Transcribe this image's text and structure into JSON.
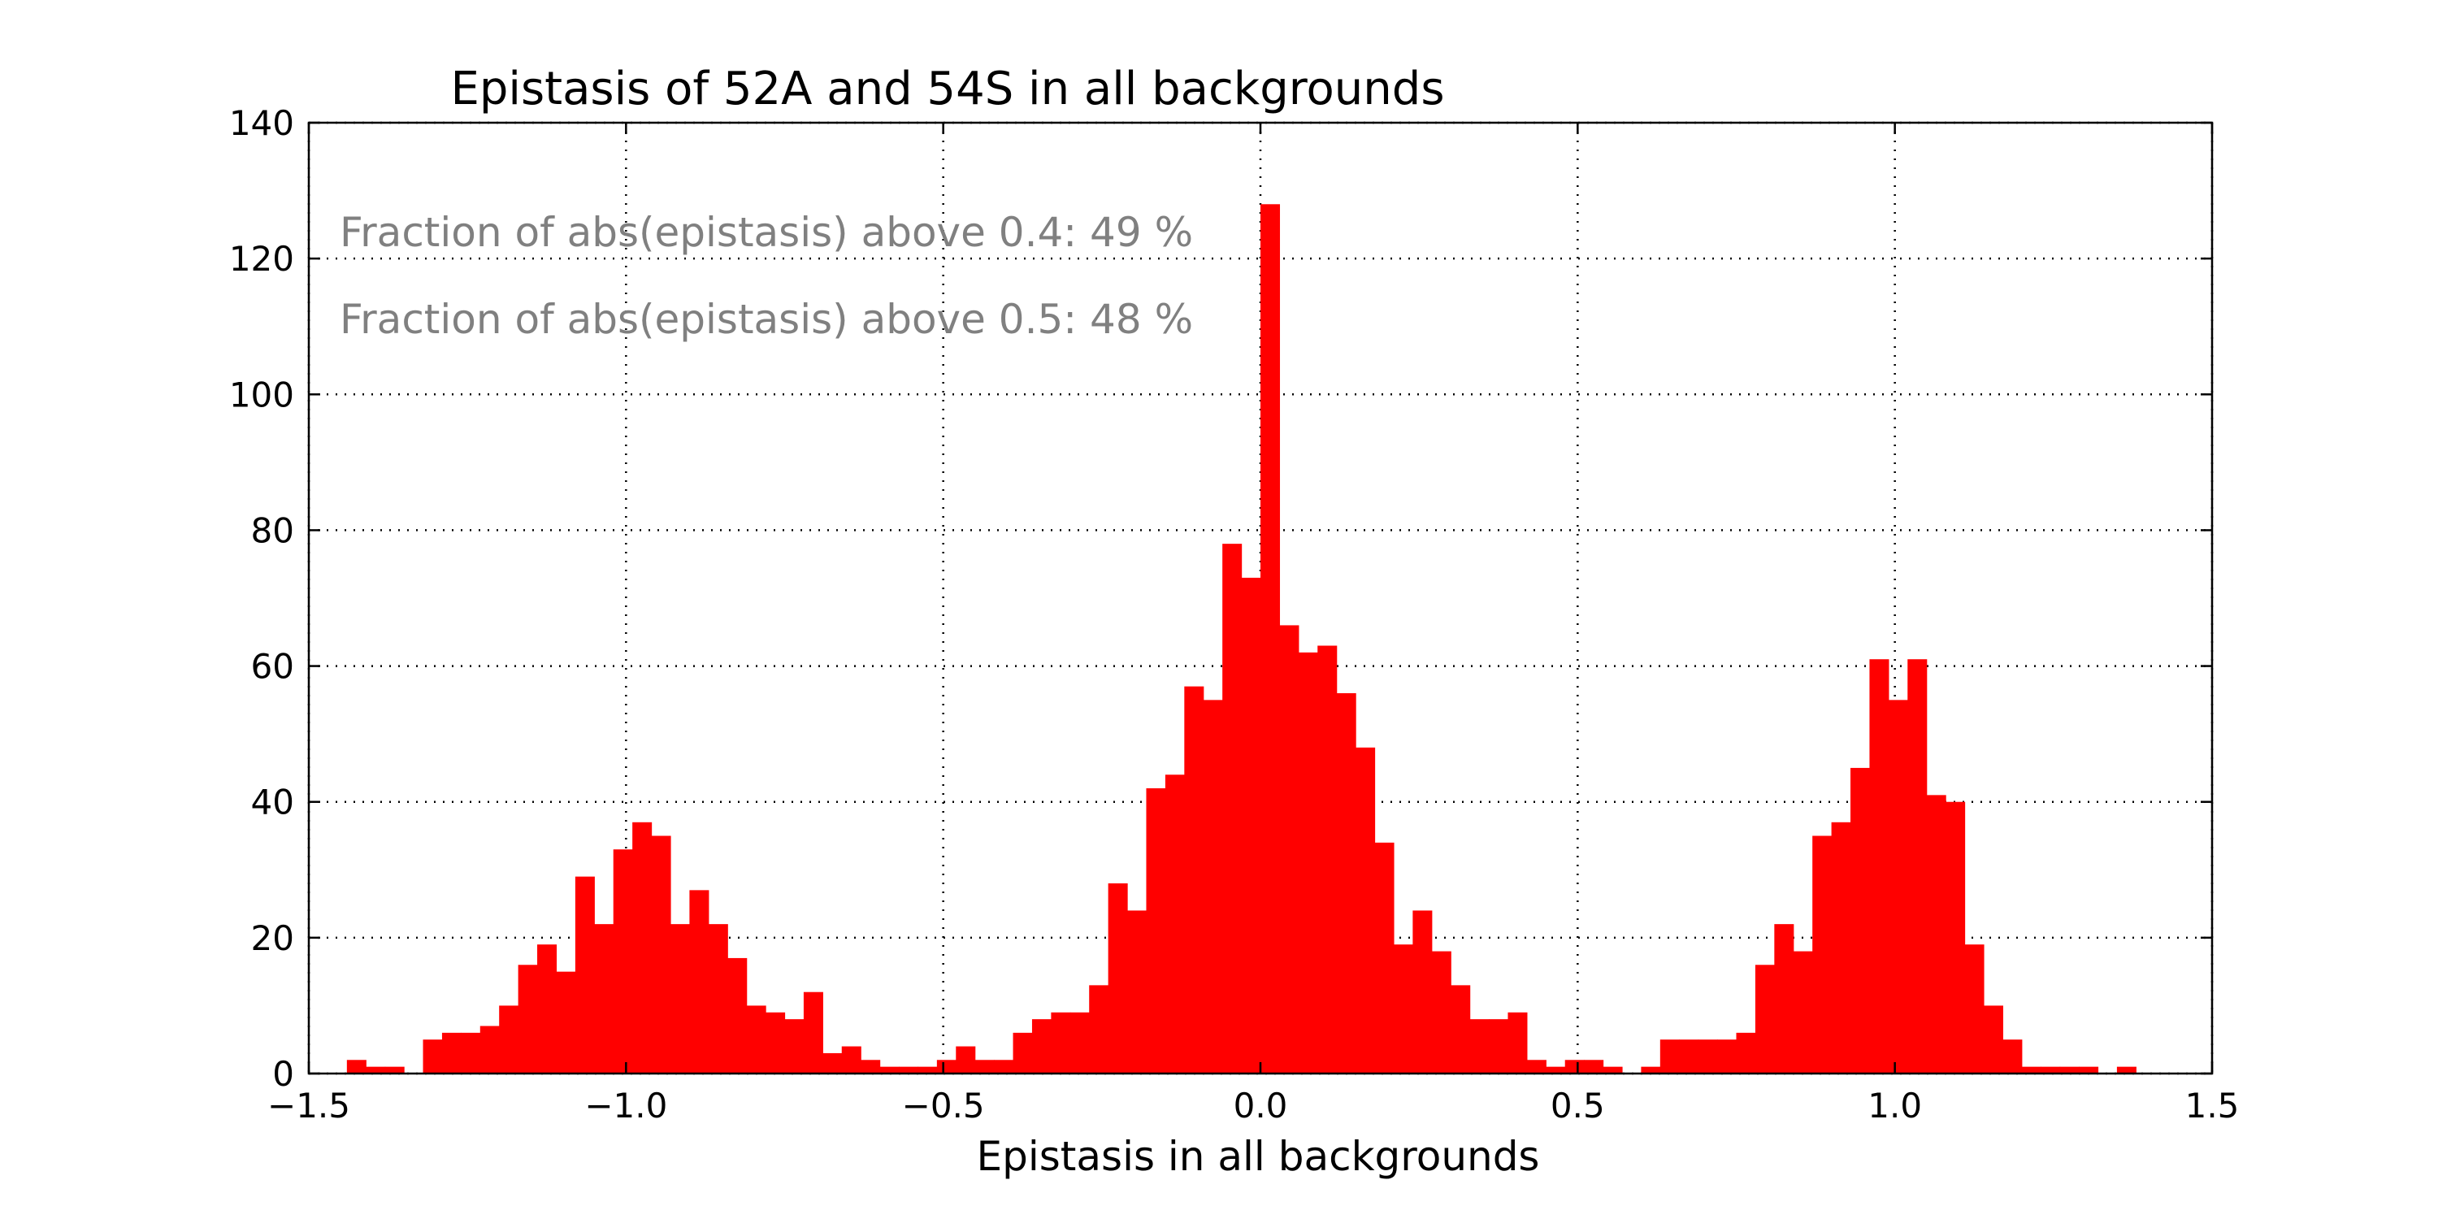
{
  "chart_data": {
    "type": "bar",
    "title": "Epistasis of 52A and 54S in all backgrounds",
    "xlabel": "Epistasis in all backgrounds",
    "ylabel": "",
    "xlim": [
      -1.5,
      1.5
    ],
    "ylim": [
      0,
      140
    ],
    "xticks": [
      -1.5,
      -1.0,
      -0.5,
      0.0,
      0.5,
      1.0,
      1.5
    ],
    "xtick_labels": [
      "−1.5",
      "−1.0",
      "−0.5",
      "0.0",
      "0.5",
      "1.0",
      "1.5"
    ],
    "yticks": [
      0,
      20,
      40,
      60,
      80,
      100,
      120,
      140
    ],
    "ytick_labels": [
      "0",
      "20",
      "40",
      "60",
      "80",
      "100",
      "120",
      "140"
    ],
    "grid": true,
    "color": "#ff0000",
    "annotations": [
      "Fraction of abs(epistasis) above 0.4: 49 %",
      "Fraction of abs(epistasis) above 0.5: 48 %"
    ],
    "bin_start": -1.44,
    "bin_width": 0.03,
    "counts": [
      2,
      1,
      1,
      0,
      5,
      6,
      6,
      7,
      10,
      16,
      19,
      15,
      29,
      22,
      33,
      37,
      35,
      22,
      27,
      22,
      17,
      10,
      9,
      8,
      12,
      3,
      4,
      2,
      1,
      1,
      1,
      2,
      4,
      2,
      2,
      6,
      8,
      9,
      9,
      13,
      28,
      24,
      42,
      44,
      57,
      55,
      78,
      73,
      128,
      66,
      62,
      63,
      56,
      48,
      34,
      19,
      24,
      18,
      13,
      8,
      8,
      9,
      2,
      1,
      2,
      2,
      1,
      0,
      1,
      5,
      5,
      5,
      5,
      6,
      16,
      22,
      18,
      35,
      37,
      45,
      61,
      55,
      61,
      41,
      40,
      19,
      10,
      5,
      1,
      1,
      1,
      1,
      0,
      1
    ]
  }
}
